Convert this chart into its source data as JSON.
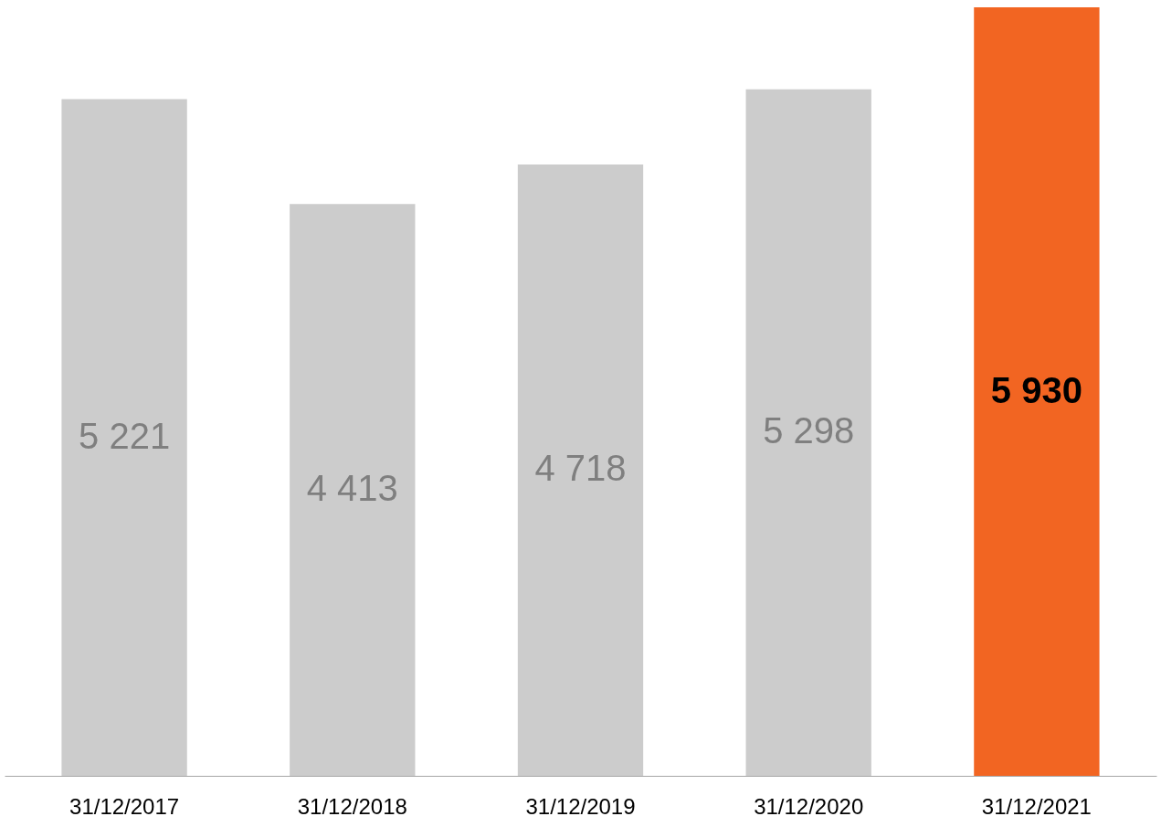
{
  "chart_data": {
    "type": "bar",
    "categories": [
      "31/12/2017",
      "31/12/2018",
      "31/12/2019",
      "31/12/2020",
      "31/12/2021"
    ],
    "values": [
      5221,
      4413,
      4718,
      5298,
      5930
    ],
    "colors": [
      "#cccccc",
      "#cccccc",
      "#cccccc",
      "#cccccc",
      "#f26522"
    ],
    "value_labels": [
      "5 221",
      "4 413",
      "4 718",
      "5 298",
      "5 930"
    ],
    "grid": false
  }
}
